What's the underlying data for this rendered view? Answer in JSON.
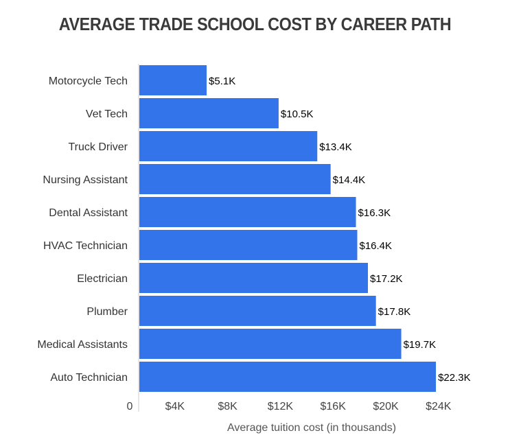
{
  "chart_data": {
    "type": "bar",
    "orientation": "horizontal",
    "title": "AVERAGE TRADE SCHOOL COST BY CAREER PATH",
    "xlabel": "Average tuition cost (in thousands)",
    "ylabel": "",
    "categories": [
      "Motorcycle Tech",
      "Vet Tech",
      "Truck Driver",
      "Nursing Assistant",
      "Dental Assistant",
      "HVAC Technician",
      "Electrician",
      "Plumber",
      "Medical Assistants",
      "Auto Technician"
    ],
    "values": [
      5.1,
      10.5,
      13.4,
      14.4,
      16.3,
      16.4,
      17.2,
      17.8,
      19.7,
      22.3
    ],
    "value_labels": [
      "$5.1K",
      "$10.5K",
      "$13.4K",
      "$14.4K",
      "$16.3K",
      "$16.4K",
      "$17.2K",
      "$17.8K",
      "$19.7K",
      "$22.3K"
    ],
    "ticks": [
      0,
      4,
      8,
      12,
      16,
      20,
      24
    ],
    "tick_labels": [
      "0",
      "$4K",
      "$8K",
      "$12K",
      "$16K",
      "$20K",
      "$24K"
    ],
    "xlim": [
      0,
      24
    ],
    "grid": false,
    "bar_color": "#3374ea"
  }
}
